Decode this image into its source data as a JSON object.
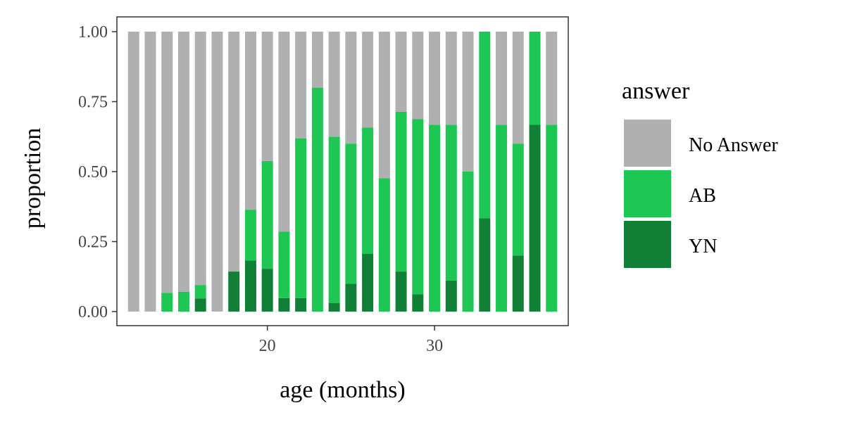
{
  "chart_data": {
    "type": "bar",
    "stacked": true,
    "title": "",
    "xlabel": "age (months)",
    "ylabel": "proportion",
    "xlim": [
      11,
      38
    ],
    "ylim": [
      0,
      1
    ],
    "x_ticks": [
      20,
      30
    ],
    "x_tick_labels": [
      "20",
      "30"
    ],
    "y_ticks": [
      0,
      0.25,
      0.5,
      0.75,
      1
    ],
    "y_tick_labels": [
      "0.00",
      "0.25",
      "0.50",
      "0.75",
      "1.00"
    ],
    "grid": false,
    "legend": {
      "title": "answer",
      "position": "right"
    },
    "x": [
      12,
      13,
      14,
      15,
      16,
      17,
      18,
      19,
      20,
      21,
      22,
      23,
      24,
      25,
      26,
      27,
      28,
      29,
      30,
      31,
      32,
      33,
      34,
      35,
      36,
      37
    ],
    "series": [
      {
        "name": "No Answer",
        "color": "#b0b0b0",
        "values": [
          1,
          1,
          0.933,
          0.929,
          0.905,
          1,
          0.857,
          0.636,
          0.462,
          0.714,
          0.381,
          0.2,
          0.375,
          0.4,
          0.343,
          0.524,
          0.286,
          0.312,
          0.333,
          0.333,
          0.5,
          0,
          0.333,
          0.4,
          0,
          0.333
        ]
      },
      {
        "name": "AB",
        "color": "#1ec653",
        "values": [
          0,
          0,
          0.067,
          0.071,
          0.048,
          0,
          0,
          0.182,
          0.385,
          0.238,
          0.571,
          0.8,
          0.594,
          0.5,
          0.451,
          0.476,
          0.571,
          0.626,
          0.667,
          0.556,
          0.5,
          0.667,
          0.667,
          0.4,
          0.333,
          0.667
        ]
      },
      {
        "name": "YN",
        "color": "#127f37",
        "values": [
          0,
          0,
          0,
          0,
          0.047,
          0,
          0.143,
          0.182,
          0.153,
          0.048,
          0.048,
          0,
          0.031,
          0.1,
          0.206,
          0,
          0.143,
          0.062,
          0,
          0.111,
          0,
          0.333,
          0,
          0.2,
          0.667,
          0
        ]
      }
    ]
  }
}
